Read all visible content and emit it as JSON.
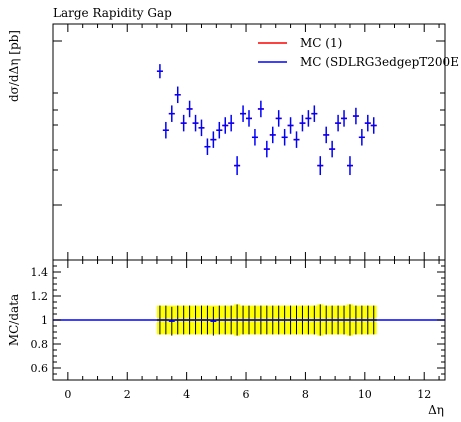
{
  "chart_data": [
    {
      "type": "scatter",
      "title": "Large Rapidity Gap",
      "ylabel": "dσ/dΔη [pb]",
      "legend_placement": "top-right",
      "series": [
        {
          "name": "MC (1)",
          "color": "#ff0000"
        },
        {
          "name": "MC (SDLRG3edgepT200E",
          "color": "#0000ff"
        }
      ],
      "x": [
        3.1,
        3.3,
        3.5,
        3.7,
        3.9,
        4.1,
        4.3,
        4.5,
        4.7,
        4.9,
        5.1,
        5.3,
        5.5,
        5.7,
        5.9,
        6.1,
        6.3,
        6.5,
        6.7,
        6.9,
        7.1,
        7.3,
        7.5,
        7.7,
        7.9,
        8.1,
        8.3,
        8.5,
        8.7,
        8.9,
        9.1,
        9.3,
        9.5,
        9.7,
        9.9,
        10.1,
        10.3
      ],
      "y_relative": [
        0.8,
        0.55,
        0.62,
        0.7,
        0.58,
        0.64,
        0.58,
        0.56,
        0.48,
        0.51,
        0.55,
        0.57,
        0.58,
        0.4,
        0.62,
        0.6,
        0.52,
        0.64,
        0.47,
        0.53,
        0.6,
        0.52,
        0.57,
        0.51,
        0.58,
        0.6,
        0.62,
        0.4,
        0.53,
        0.47,
        0.58,
        0.6,
        0.4,
        0.61,
        0.52,
        0.58,
        0.57
      ],
      "y_err_relative": [
        0.06,
        0.07,
        0.07,
        0.07,
        0.07,
        0.07,
        0.07,
        0.07,
        0.07,
        0.07,
        0.07,
        0.07,
        0.07,
        0.08,
        0.07,
        0.07,
        0.07,
        0.07,
        0.07,
        0.07,
        0.07,
        0.07,
        0.07,
        0.07,
        0.07,
        0.07,
        0.07,
        0.08,
        0.07,
        0.07,
        0.07,
        0.07,
        0.08,
        0.07,
        0.07,
        0.07,
        0.07
      ],
      "ylim_relative": [
        0,
        1
      ]
    },
    {
      "type": "scatter",
      "ylabel": "MC/data",
      "xlabel": "Δη",
      "xlim": [
        -0.5,
        12.7
      ],
      "ylim": [
        0.5,
        1.5
      ],
      "x_ticks": [
        "0",
        "2",
        "4",
        "6",
        "8",
        "10",
        "12"
      ],
      "y_ticks": [
        "0.6",
        "0.8",
        "1",
        "1.2",
        "1.4"
      ],
      "reference_line": 1.0,
      "band_color": "#ffff00",
      "band_range": [
        3.0,
        10.4
      ],
      "ratio": [
        1.0,
        1.0,
        0.99,
        1.0,
        1.0,
        1.0,
        1.0,
        1.0,
        1.0,
        0.99,
        1.0,
        1.0,
        1.0,
        1.0,
        1.0,
        1.0,
        1.0,
        1.0,
        1.0,
        1.0,
        1.0,
        1.0,
        1.0,
        1.0,
        1.0,
        1.0,
        1.0,
        1.0,
        1.0,
        1.0,
        1.0,
        1.0,
        1.0,
        1.0,
        1.0,
        1.0,
        1.0
      ],
      "ratio_err": [
        0.12,
        0.12,
        0.12,
        0.12,
        0.12,
        0.12,
        0.12,
        0.12,
        0.12,
        0.12,
        0.12,
        0.12,
        0.12,
        0.13,
        0.12,
        0.12,
        0.12,
        0.12,
        0.12,
        0.12,
        0.12,
        0.12,
        0.12,
        0.12,
        0.12,
        0.12,
        0.12,
        0.13,
        0.12,
        0.12,
        0.12,
        0.12,
        0.13,
        0.12,
        0.12,
        0.12,
        0.12
      ]
    }
  ]
}
